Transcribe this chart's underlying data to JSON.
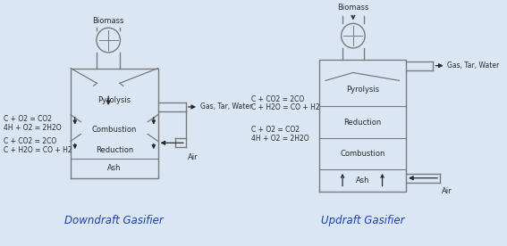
{
  "bg_color": "#dae6f3",
  "line_color": "#7a7a7a",
  "text_color": "#2a2a2a",
  "title_color": "#1a3faa",
  "arrow_color": "#2a2a2a",
  "downdraft_label": "Downdraft Gasifier",
  "updraft_label": "Updraft Gasifier",
  "downdraft_reactions_upper": [
    "C + O2 = CO2",
    "4H + O2 = 2H2O"
  ],
  "downdraft_reactions_lower": [
    "C + CO2 = 2CO",
    "C + H2O = CO + H2"
  ],
  "updraft_reactions_upper": [
    "C + CO2 = 2CO",
    "C + H2O = CO + H2"
  ],
  "updraft_reactions_lower": [
    "C + O2 = CO2",
    "4H + O2 = 2H2O"
  ],
  "zones_downdraft": [
    "Pyrolysis",
    "Combustion",
    "Reduction",
    "Ash"
  ],
  "zones_updraft": [
    "Pyrolysis",
    "Reduction",
    "Combustion",
    "Ash"
  ],
  "gas_tar_water": "Gas, Tar, Water",
  "air_label": "Air",
  "biomass_label": "Biomass",
  "font_size": 6.0,
  "label_font_size": 8.5
}
